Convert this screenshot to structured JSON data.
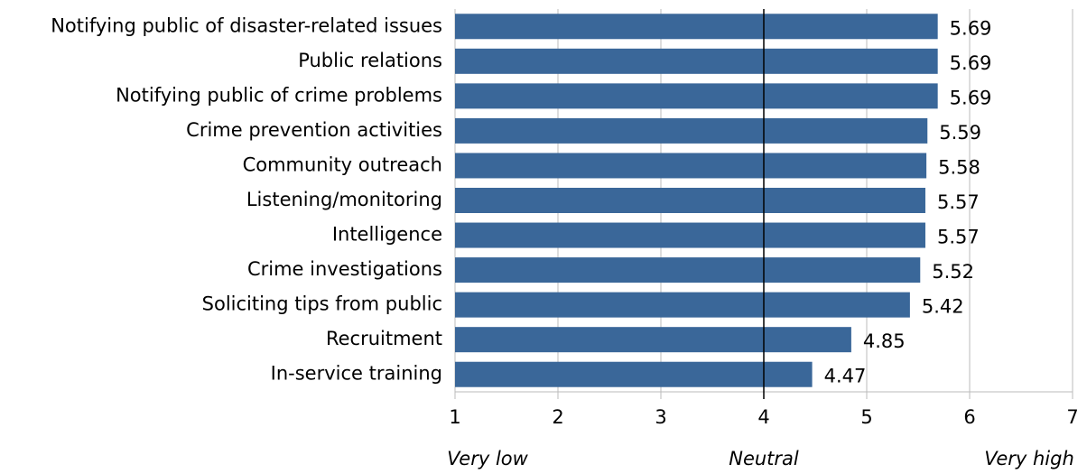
{
  "chart_data": {
    "type": "bar",
    "orientation": "horizontal",
    "categories": [
      "Notifying public of disaster-related issues",
      "Public relations",
      "Notifying public of crime problems",
      "Crime prevention activities",
      "Community outreach",
      "Listening/monitoring",
      "Intelligence",
      "Crime investigations",
      "Soliciting tips from public",
      "Recruitment",
      "In-service training"
    ],
    "values": [
      5.69,
      5.69,
      5.69,
      5.59,
      5.58,
      5.57,
      5.57,
      5.52,
      5.42,
      4.85,
      4.47
    ],
    "color": "#3a6799",
    "xlim": [
      1,
      7
    ],
    "xticks": [
      1,
      2,
      3,
      4,
      5,
      6,
      7
    ],
    "grid": true,
    "reference_line": 4,
    "annotations": [
      "Very low",
      "Neutral",
      "Very high"
    ]
  }
}
